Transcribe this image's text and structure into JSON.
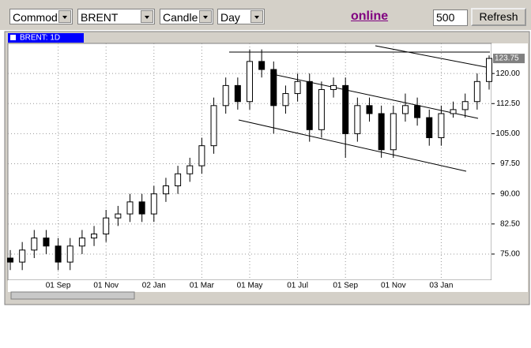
{
  "toolbar": {
    "market": "Commod",
    "symbol": "BRENT",
    "style": "Candle",
    "period": "Day",
    "status": "online",
    "bars": "500",
    "refresh": "Refresh"
  },
  "chart_data": {
    "type": "candlestick",
    "title": "BRENT: 1D",
    "color": "#000000",
    "up_color": "#ffffff",
    "grid": true,
    "categories": [
      null,
      null,
      null,
      null,
      "01 Sep",
      null,
      null,
      null,
      "01 Nov",
      null,
      null,
      null,
      "02 Jan",
      null,
      null,
      null,
      "01 Mar",
      null,
      null,
      null,
      "01 May",
      null,
      null,
      null,
      "01 Jul",
      null,
      null,
      null,
      "01 Sep",
      null,
      null,
      null,
      "01 Nov",
      null,
      null,
      null,
      "03 Jan",
      null,
      null,
      null,
      null
    ],
    "open": [
      74,
      73,
      76,
      79,
      77,
      73,
      77,
      79,
      80,
      84,
      85,
      88,
      85,
      90,
      92,
      95,
      97,
      102,
      112,
      117,
      113,
      123,
      121,
      112,
      115,
      118,
      106,
      116,
      117,
      105,
      112,
      110,
      101,
      110,
      112,
      109,
      104,
      110,
      111,
      113,
      118
    ],
    "high": [
      76,
      78,
      81,
      81,
      79,
      79,
      81,
      82,
      86,
      87,
      90,
      90,
      92,
      94,
      97,
      99,
      104,
      114,
      119,
      119,
      126,
      126,
      123,
      117,
      120,
      120,
      118,
      119,
      119,
      114,
      114,
      112,
      112,
      115,
      114,
      111,
      112,
      113,
      115,
      120,
      124.5
    ],
    "low": [
      71,
      71,
      74,
      75,
      71,
      71,
      75,
      77,
      78,
      82,
      83,
      83,
      83,
      88,
      90,
      93,
      95,
      100,
      110,
      111,
      111,
      119,
      105,
      110,
      113,
      103,
      104,
      114,
      99,
      103,
      108,
      99,
      99,
      108,
      107,
      102,
      102,
      109,
      109,
      111,
      116
    ],
    "close": [
      73,
      76,
      79,
      77,
      73,
      77,
      79,
      80,
      84,
      85,
      88,
      85,
      90,
      92,
      95,
      97,
      102,
      112,
      117,
      113,
      123,
      121,
      112,
      115,
      118,
      106,
      116,
      117,
      105,
      112,
      110,
      101,
      110,
      112,
      109,
      104,
      110,
      111,
      113,
      118,
      123.75
    ],
    "ylim": [
      68.5,
      127.5
    ],
    "yticks": [
      {
        "value": 75,
        "label": "75.00"
      },
      {
        "value": 82.5,
        "label": "82.50"
      },
      {
        "value": 90,
        "label": "90.00"
      },
      {
        "value": 97.5,
        "label": "97.50"
      },
      {
        "value": 105,
        "label": "105.00"
      },
      {
        "value": 112.5,
        "label": "112.50"
      },
      {
        "value": 120,
        "label": "120.00"
      }
    ]
  }
}
